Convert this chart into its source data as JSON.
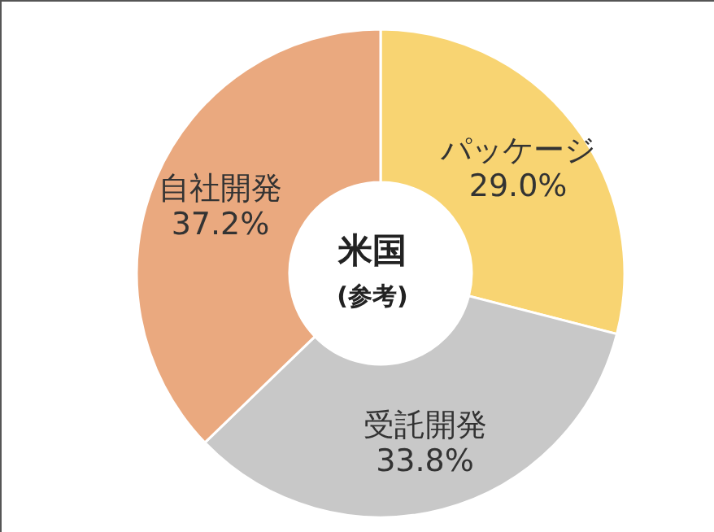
{
  "chart_data": {
    "type": "donut",
    "title": "米国",
    "subtitle": "(参考)",
    "categories": [
      "パッケージ",
      "受託開発",
      "自社開発"
    ],
    "values": [
      29.0,
      33.8,
      37.2
    ],
    "colors": [
      "#f8d472",
      "#c8c8c8",
      "#eaa97f"
    ],
    "value_labels": [
      "29.0%",
      "33.8%",
      "37.2%"
    ]
  }
}
